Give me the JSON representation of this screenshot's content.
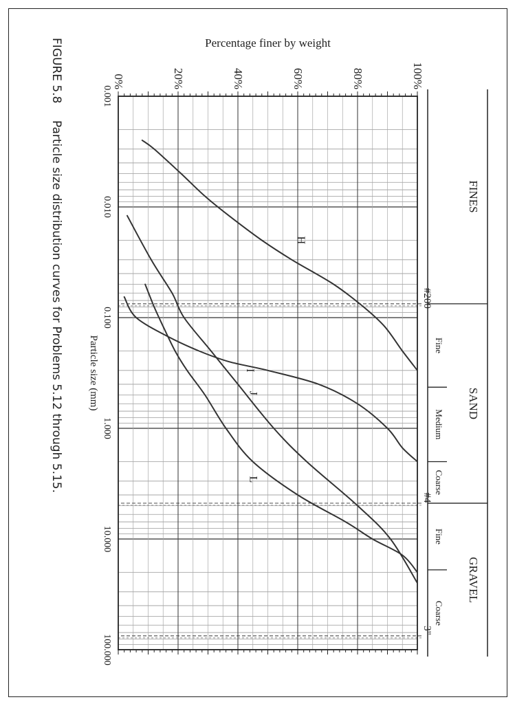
{
  "chart_data": {
    "type": "line",
    "title": "",
    "xlabel": "Particle size (mm)",
    "ylabel": "Percentage finer by weight",
    "x_scale": "log",
    "xlim": [
      0.001,
      100
    ],
    "ylim": [
      0,
      100
    ],
    "x_tick_labels": [
      "0.001",
      "0.010",
      "0.100",
      "1.000",
      "10.000",
      "100.000"
    ],
    "y_tick_labels": [
      "0%",
      "20%",
      "40%",
      "60%",
      "80%",
      "100%"
    ],
    "x_ticks": [
      0.001,
      0.01,
      0.1,
      1,
      10,
      100
    ],
    "y_ticks": [
      0,
      20,
      40,
      60,
      80,
      100
    ],
    "grid": true,
    "series": [
      {
        "name": "H",
        "color": "#333333",
        "points": [
          [
            0.0025,
            8
          ],
          [
            0.003,
            12
          ],
          [
            0.005,
            21
          ],
          [
            0.008,
            29
          ],
          [
            0.012,
            37
          ],
          [
            0.02,
            48
          ],
          [
            0.03,
            58
          ],
          [
            0.05,
            72
          ],
          [
            0.08,
            82
          ],
          [
            0.12,
            89
          ],
          [
            0.2,
            95
          ],
          [
            0.3,
            100
          ]
        ]
      },
      {
        "name": "I",
        "color": "#333333",
        "points": [
          [
            0.065,
            2
          ],
          [
            0.1,
            6
          ],
          [
            0.15,
            17
          ],
          [
            0.2,
            27
          ],
          [
            0.25,
            37
          ],
          [
            0.3,
            50
          ],
          [
            0.4,
            67
          ],
          [
            0.6,
            80
          ],
          [
            1.0,
            90
          ],
          [
            1.5,
            95
          ],
          [
            2.0,
            100
          ]
        ]
      },
      {
        "name": "J",
        "color": "#333333",
        "points": [
          [
            0.012,
            3
          ],
          [
            0.03,
            11
          ],
          [
            0.06,
            18
          ],
          [
            0.1,
            22
          ],
          [
            0.2,
            31
          ],
          [
            0.4,
            40
          ],
          [
            1.0,
            52
          ],
          [
            2.0,
            63
          ],
          [
            5.0,
            80
          ],
          [
            10.0,
            91
          ],
          [
            25.0,
            100
          ]
        ]
      },
      {
        "name": "L",
        "color": "#333333",
        "points": [
          [
            0.05,
            9
          ],
          [
            0.08,
            12
          ],
          [
            0.12,
            15
          ],
          [
            0.2,
            19
          ],
          [
            0.3,
            23
          ],
          [
            0.5,
            29
          ],
          [
            1.0,
            36
          ],
          [
            2.0,
            45
          ],
          [
            4.0,
            60
          ],
          [
            7.0,
            76
          ],
          [
            10.0,
            85
          ],
          [
            14.0,
            95
          ],
          [
            20.0,
            100
          ]
        ]
      }
    ],
    "annotations": {
      "sieve_labels": [
        "#200",
        "#4",
        "3\""
      ],
      "sieve_sizes": [
        0.075,
        4.75,
        75
      ],
      "classification": {
        "fines": "FINES",
        "sand": "SAND",
        "gravel": "GRAVEL",
        "sand_sub": [
          "Fine",
          "Medium",
          "Coarse"
        ],
        "gravel_sub": [
          "Fine",
          "Coarse"
        ],
        "sand_fine_medium_boundary": 0.425,
        "sand_medium_coarse_boundary": 2.0,
        "gravel_fine_coarse_boundary": 19
      }
    },
    "caption": {
      "label": "FIGURE 5.8",
      "text": "Particle size distribution curves for Problems 5.12 through 5.15."
    }
  }
}
